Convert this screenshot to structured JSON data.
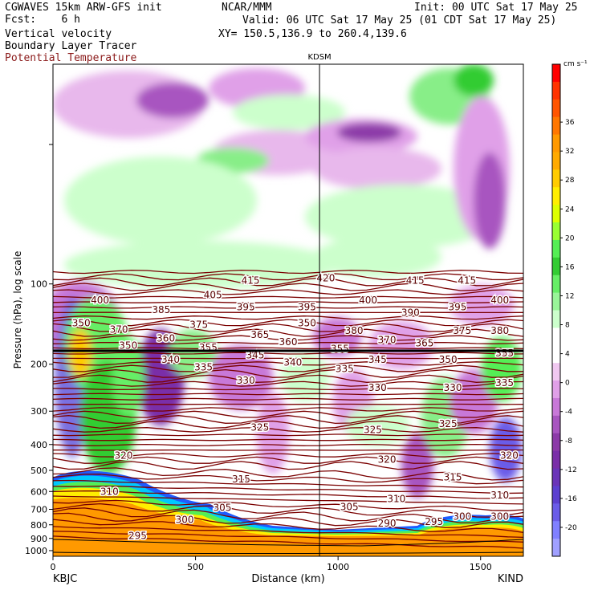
{
  "header": {
    "model": "CGWAVES 15km ARW-GFS init",
    "fcst": "Fcst:    6 h",
    "org": "NCAR/MMM",
    "init": "Init: 00 UTC Sat 17 May 25",
    "valid": "Valid: 06 UTC Sat 17 May 25 (01 CDT Sat 17 May 25)",
    "xy": "XY= 150.5,136.9 to 260.4,139.6",
    "field1": "Vertical velocity",
    "field2": "Boundary Layer Tracer",
    "field3": "Potential Temperature"
  },
  "chart_data": {
    "type": "heatmap",
    "title": "",
    "xlabel": "Distance (km)",
    "ylabel": "Pressure (hPa), log scale",
    "xlim": [
      0,
      1650
    ],
    "ylim": [
      1050,
      15
    ],
    "y_scale": "log",
    "x_ticks": [
      0,
      500,
      1000,
      1500
    ],
    "y_ticks": [
      100,
      200,
      300,
      400,
      500,
      600,
      700,
      800,
      900,
      1000
    ],
    "x_tick_labels": [
      "0",
      "500",
      "1000",
      "1500"
    ],
    "y_tick_labels": [
      "100",
      "200",
      "300",
      "400",
      "500",
      "600",
      "700",
      "800",
      "900",
      "1000"
    ],
    "endpoints": {
      "left": "KBJC",
      "right": "KIND"
    },
    "marker_label": "KDSM",
    "marker_x": 935,
    "colorbar": {
      "unit": "cm s⁻¹",
      "levels": [
        36,
        32,
        28,
        24,
        20,
        16,
        12,
        8,
        4,
        0,
        -4,
        -8,
        -12,
        -16,
        -20
      ],
      "labels": [
        "36",
        "32",
        "28",
        "24",
        "20",
        "16",
        "12",
        "8",
        "4",
        "0",
        "-4",
        "-8",
        "-12",
        "-16",
        "-20"
      ],
      "colors": [
        "#ff0000",
        "#ff3300",
        "#ff5500",
        "#ff7700",
        "#ff9900",
        "#ffaa00",
        "#ffcc00",
        "#ffee00",
        "#ddff00",
        "#99ff33",
        "#55ee55",
        "#33cc33",
        "#66ee66",
        "#99f599",
        "#ccffcc",
        "#ffffff",
        "#ffffff",
        "#f0c8f0",
        "#e0a0e8",
        "#c878d8",
        "#a855c0",
        "#8c3aa8",
        "#7a2ea8",
        "#6a34b8",
        "#5c40d0",
        "#6a5ce8",
        "#8080ff",
        "#a0a0ff"
      ]
    },
    "theta_contours": [
      {
        "label": "420",
        "p": 95,
        "x": 0.58
      },
      {
        "label": "415",
        "p": 97,
        "x": 0.42
      },
      {
        "label": "415",
        "p": 97,
        "x": 0.77
      },
      {
        "label": "415",
        "p": 97,
        "x": 0.88
      },
      {
        "label": "405",
        "p": 110,
        "x": 0.34
      },
      {
        "label": "400",
        "p": 115,
        "x": 0.1
      },
      {
        "label": "400",
        "p": 115,
        "x": 0.67
      },
      {
        "label": "400",
        "p": 115,
        "x": 0.95
      },
      {
        "label": "395",
        "p": 122,
        "x": 0.41
      },
      {
        "label": "395",
        "p": 122,
        "x": 0.54
      },
      {
        "label": "395",
        "p": 122,
        "x": 0.86
      },
      {
        "label": "390",
        "p": 128,
        "x": 0.76
      },
      {
        "label": "385",
        "p": 125,
        "x": 0.23
      },
      {
        "label": "380",
        "p": 150,
        "x": 0.64
      },
      {
        "label": "380",
        "p": 150,
        "x": 0.95
      },
      {
        "label": "375",
        "p": 142,
        "x": 0.31
      },
      {
        "label": "375",
        "p": 150,
        "x": 0.87
      },
      {
        "label": "370",
        "p": 148,
        "x": 0.14
      },
      {
        "label": "370",
        "p": 162,
        "x": 0.71
      },
      {
        "label": "365",
        "p": 155,
        "x": 0.44
      },
      {
        "label": "365",
        "p": 167,
        "x": 0.79
      },
      {
        "label": "360",
        "p": 160,
        "x": 0.24
      },
      {
        "label": "360",
        "p": 165,
        "x": 0.5
      },
      {
        "label": "355",
        "p": 173,
        "x": 0.33
      },
      {
        "label": "355",
        "p": 175,
        "x": 0.61
      },
      {
        "label": "355",
        "p": 182,
        "x": 0.96
      },
      {
        "label": "350",
        "p": 170,
        "x": 0.16
      },
      {
        "label": "350",
        "p": 192,
        "x": 0.84
      },
      {
        "label": "345",
        "p": 185,
        "x": 0.43
      },
      {
        "label": "345",
        "p": 192,
        "x": 0.69
      },
      {
        "label": "340",
        "p": 192,
        "x": 0.25
      },
      {
        "label": "340",
        "p": 197,
        "x": 0.51
      },
      {
        "label": "335",
        "p": 205,
        "x": 0.32
      },
      {
        "label": "335",
        "p": 208,
        "x": 0.62
      },
      {
        "label": "335",
        "p": 235,
        "x": 0.96
      },
      {
        "label": "330",
        "p": 230,
        "x": 0.41
      },
      {
        "label": "330",
        "p": 245,
        "x": 0.69
      },
      {
        "label": "330",
        "p": 245,
        "x": 0.85
      },
      {
        "label": "325",
        "p": 345,
        "x": 0.44
      },
      {
        "label": "325",
        "p": 352,
        "x": 0.68
      },
      {
        "label": "325",
        "p": 335,
        "x": 0.84
      },
      {
        "label": "320",
        "p": 440,
        "x": 0.15
      },
      {
        "label": "320",
        "p": 455,
        "x": 0.71
      },
      {
        "label": "320",
        "p": 440,
        "x": 0.97
      },
      {
        "label": "315",
        "p": 540,
        "x": 0.4
      },
      {
        "label": "315",
        "p": 530,
        "x": 0.85
      },
      {
        "label": "310",
        "p": 600,
        "x": 0.12
      },
      {
        "label": "310",
        "p": 640,
        "x": 0.73
      },
      {
        "label": "310",
        "p": 620,
        "x": 0.95
      },
      {
        "label": "305",
        "p": 690,
        "x": 0.36
      },
      {
        "label": "305",
        "p": 685,
        "x": 0.63
      },
      {
        "label": "300",
        "p": 765,
        "x": 0.28
      },
      {
        "label": "300",
        "p": 745,
        "x": 0.87
      },
      {
        "label": "300",
        "p": 745,
        "x": 0.95
      },
      {
        "label": "295",
        "p": 880,
        "x": 0.18
      },
      {
        "label": "295",
        "p": 780,
        "x": 0.81
      },
      {
        "label": "290",
        "p": 790,
        "x": 0.71
      },
      {
        "label": "350",
        "p": 140,
        "x": 0.06
      },
      {
        "label": "350",
        "p": 140,
        "x": 0.54
      }
    ]
  }
}
